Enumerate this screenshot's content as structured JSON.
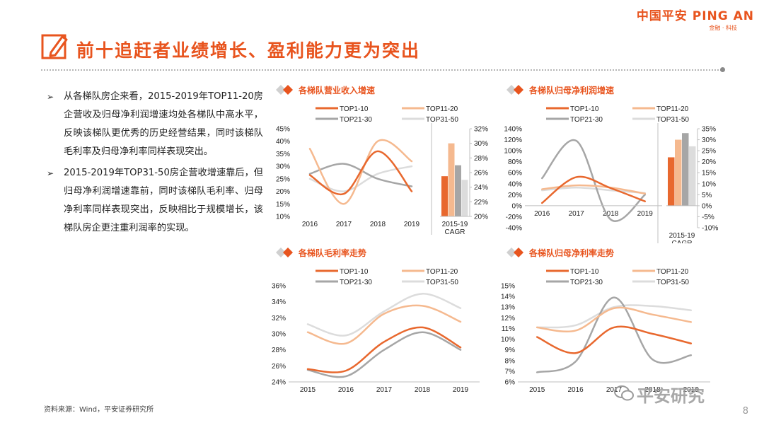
{
  "logo": {
    "main": "中国平安 PING AN",
    "sub": "金融 · 科技"
  },
  "title": "前十追赶者业绩增长、盈利能力更为突出",
  "bullets": [
    "从各梯队房企来看，2015-2019年TOP11-20房企营收及归母净利润增速均处各梯队中高水平，反映该梯队更优秀的历史经营结果，同时该梯队毛利率及归母净利率同样表现突出。",
    "2015-2019年TOP31-50房企营收增速靠后，但归母净利润增速靠前，同时该梯队毛利率、归母净利率同样表现突出，反映相比于规模增长，该梯队房企更注重利润率的实现。"
  ],
  "bullet_symbol": "➢",
  "source": "资料来源：Wind，平安证券研究所",
  "page_number": "8",
  "watermark": "平安研究",
  "colors": {
    "top1_10": "#e8682e",
    "top11_20": "#f5b98f",
    "top21_30": "#a6a6a6",
    "top31_50": "#dcdcdc",
    "accent": "#e8541e"
  },
  "chart_data": [
    {
      "id": "revenue",
      "type": "line",
      "title": "各梯队营业收入增速",
      "legend": [
        "TOP1-10",
        "TOP11-20",
        "TOP21-30",
        "TOP31-50"
      ],
      "x": [
        "2016",
        "2017",
        "2018",
        "2019"
      ],
      "series": [
        {
          "name": "TOP1-10",
          "values": [
            26.5,
            19,
            36,
            20
          ]
        },
        {
          "name": "TOP11-20",
          "values": [
            37,
            15,
            40,
            32
          ]
        },
        {
          "name": "TOP21-30",
          "values": [
            27,
            31,
            25,
            22
          ]
        },
        {
          "name": "TOP31-50",
          "values": [
            25,
            20,
            27,
            30
          ]
        }
      ],
      "ylim": [
        10,
        45
      ],
      "yticks": [
        "10%",
        "15%",
        "20%",
        "25%",
        "30%",
        "35%",
        "40%",
        "45%"
      ],
      "cagr": {
        "label": "2015-19 CAGR",
        "values": [
          25.5,
          30.0,
          27.0,
          25.0
        ],
        "ylim": [
          20,
          32
        ],
        "yticks": [
          "20%",
          "22%",
          "24%",
          "26%",
          "28%",
          "30%",
          "32%"
        ]
      }
    },
    {
      "id": "netprofit",
      "type": "line",
      "title": "各梯队归母净利润增速",
      "legend": [
        "TOP1-10",
        "TOP11-20",
        "TOP21-30",
        "TOP31-50"
      ],
      "x": [
        "2016",
        "2017",
        "2018",
        "2019"
      ],
      "series": [
        {
          "name": "TOP1-10",
          "values": [
            5,
            52,
            32,
            8
          ]
        },
        {
          "name": "TOP11-20",
          "values": [
            30,
            37,
            33,
            22
          ]
        },
        {
          "name": "TOP21-30",
          "values": [
            50,
            118,
            -25,
            20
          ]
        },
        {
          "name": "TOP31-50",
          "values": [
            28,
            33,
            28,
            23
          ]
        }
      ],
      "ylim": [
        -40,
        140
      ],
      "yticks": [
        "-40%",
        "-20%",
        "0%",
        "20%",
        "40%",
        "60%",
        "80%",
        "100%",
        "120%",
        "140%"
      ],
      "cagr": {
        "label": "2015-19 CAGR",
        "values": [
          22.0,
          30.0,
          33.0,
          27.0
        ],
        "ylim": [
          -10,
          35
        ],
        "yticks": [
          "-10%",
          "-5%",
          "0%",
          "5%",
          "10%",
          "15%",
          "20%",
          "25%",
          "30%",
          "35%"
        ]
      }
    },
    {
      "id": "grossmargin",
      "type": "line",
      "title": "各梯队毛利率走势",
      "legend": [
        "TOP1-10",
        "TOP11-20",
        "TOP21-30",
        "TOP31-50"
      ],
      "x": [
        "2015",
        "2016",
        "2017",
        "2018",
        "2019"
      ],
      "series": [
        {
          "name": "TOP1-10",
          "values": [
            25.6,
            25.4,
            29.0,
            30.8,
            28.3
          ]
        },
        {
          "name": "TOP11-20",
          "values": [
            30.2,
            28.8,
            32.5,
            33.5,
            31.5
          ]
        },
        {
          "name": "TOP21-30",
          "values": [
            25.5,
            24.7,
            28.0,
            30.2,
            28.0
          ]
        },
        {
          "name": "TOP31-50",
          "values": [
            31.2,
            29.8,
            32.8,
            35.0,
            33.2
          ]
        }
      ],
      "ylim": [
        24,
        36
      ],
      "yticks": [
        "24%",
        "26%",
        "28%",
        "30%",
        "32%",
        "34%",
        "36%"
      ]
    },
    {
      "id": "netmargin",
      "type": "line",
      "title": "各梯队归母净利率走势",
      "legend": [
        "TOP1-10",
        "TOP11-20",
        "TOP21-30",
        "TOP31-50"
      ],
      "x": [
        "2015",
        "2016",
        "2017",
        "2018",
        "2019"
      ],
      "series": [
        {
          "name": "TOP1-10",
          "values": [
            10.2,
            8.7,
            11.1,
            10.5,
            9.6
          ]
        },
        {
          "name": "TOP11-20",
          "values": [
            11.1,
            10.8,
            12.9,
            12.3,
            11.6
          ]
        },
        {
          "name": "TOP21-30",
          "values": [
            6.9,
            7.9,
            13.9,
            8.1,
            8.5
          ]
        },
        {
          "name": "TOP31-50",
          "values": [
            11.1,
            11.3,
            13.0,
            13.1,
            12.7
          ]
        }
      ],
      "ylim": [
        6,
        15
      ],
      "yticks": [
        "6%",
        "7%",
        "8%",
        "9%",
        "10%",
        "11%",
        "12%",
        "13%",
        "14%",
        "15%"
      ]
    }
  ]
}
